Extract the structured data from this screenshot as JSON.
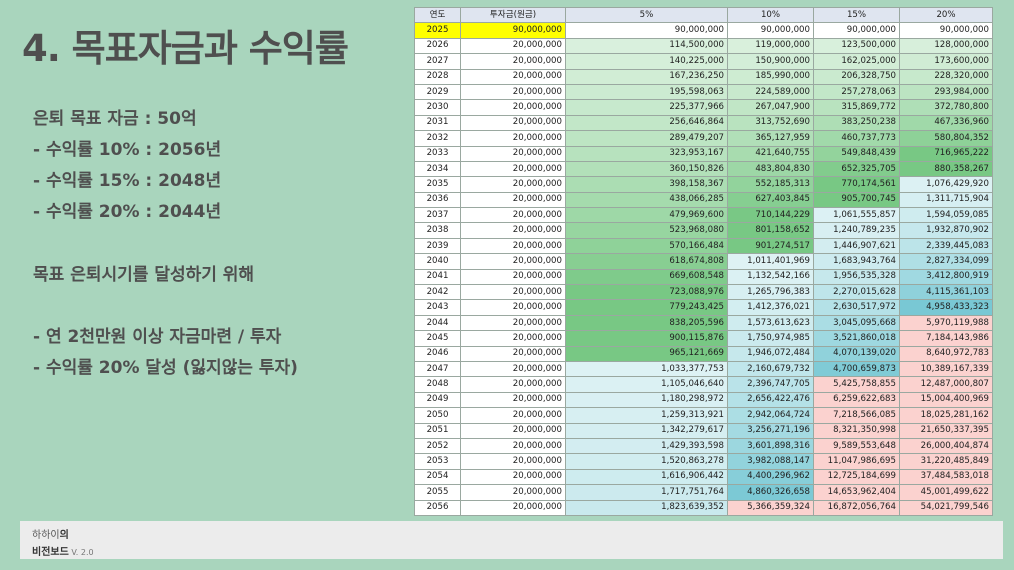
{
  "slide": {
    "title": "4. 목표자금과 수익률",
    "notes": [
      "은퇴 목표 자금 : 50억",
      " - 수익률 10% : 2056년",
      " - 수익률 15% : 2048년",
      " - 수익률 20% : 2044년",
      "목표 은퇴시기를 달성하기 위해",
      " - 연 2천만원 이상 자금마련 / 투자",
      " - 수익률 20% 달성 (잃지않는 투자)"
    ]
  },
  "table": {
    "headers": [
      "연도",
      "투자금(원금)",
      "5%",
      "10%",
      "15%",
      "20%"
    ],
    "rows": [
      [
        "2025",
        "90,000,000",
        "90,000,000",
        "90,000,000",
        "90,000,000",
        "90,000,000"
      ],
      [
        "2026",
        "20,000,000",
        "114,500,000",
        "119,000,000",
        "123,500,000",
        "128,000,000"
      ],
      [
        "2027",
        "20,000,000",
        "140,225,000",
        "150,900,000",
        "162,025,000",
        "173,600,000"
      ],
      [
        "2028",
        "20,000,000",
        "167,236,250",
        "185,990,000",
        "206,328,750",
        "228,320,000"
      ],
      [
        "2029",
        "20,000,000",
        "195,598,063",
        "224,589,000",
        "257,278,063",
        "293,984,000"
      ],
      [
        "2030",
        "20,000,000",
        "225,377,966",
        "267,047,900",
        "315,869,772",
        "372,780,800"
      ],
      [
        "2031",
        "20,000,000",
        "256,646,864",
        "313,752,690",
        "383,250,238",
        "467,336,960"
      ],
      [
        "2032",
        "20,000,000",
        "289,479,207",
        "365,127,959",
        "460,737,773",
        "580,804,352"
      ],
      [
        "2033",
        "20,000,000",
        "323,953,167",
        "421,640,755",
        "549,848,439",
        "716,965,222"
      ],
      [
        "2034",
        "20,000,000",
        "360,150,826",
        "483,804,830",
        "652,325,705",
        "880,358,267"
      ],
      [
        "2035",
        "20,000,000",
        "398,158,367",
        "552,185,313",
        "770,174,561",
        "1,076,429,920"
      ],
      [
        "2036",
        "20,000,000",
        "438,066,285",
        "627,403,845",
        "905,700,745",
        "1,311,715,904"
      ],
      [
        "2037",
        "20,000,000",
        "479,969,600",
        "710,144,229",
        "1,061,555,857",
        "1,594,059,085"
      ],
      [
        "2038",
        "20,000,000",
        "523,968,080",
        "801,158,652",
        "1,240,789,235",
        "1,932,870,902"
      ],
      [
        "2039",
        "20,000,000",
        "570,166,484",
        "901,274,517",
        "1,446,907,621",
        "2,339,445,083"
      ],
      [
        "2040",
        "20,000,000",
        "618,674,808",
        "1,011,401,969",
        "1,683,943,764",
        "2,827,334,099"
      ],
      [
        "2041",
        "20,000,000",
        "669,608,548",
        "1,132,542,166",
        "1,956,535,328",
        "3,412,800,919"
      ],
      [
        "2042",
        "20,000,000",
        "723,088,976",
        "1,265,796,383",
        "2,270,015,628",
        "4,115,361,103"
      ],
      [
        "2043",
        "20,000,000",
        "779,243,425",
        "1,412,376,021",
        "2,630,517,972",
        "4,958,433,323"
      ],
      [
        "2044",
        "20,000,000",
        "838,205,596",
        "1,573,613,623",
        "3,045,095,668",
        "5,970,119,988"
      ],
      [
        "2045",
        "20,000,000",
        "900,115,876",
        "1,750,974,985",
        "3,521,860,018",
        "7,184,143,986"
      ],
      [
        "2046",
        "20,000,000",
        "965,121,669",
        "1,946,072,484",
        "4,070,139,020",
        "8,640,972,783"
      ],
      [
        "2047",
        "20,000,000",
        "1,033,377,753",
        "2,160,679,732",
        "4,700,659,873",
        "10,389,167,339"
      ],
      [
        "2048",
        "20,000,000",
        "1,105,046,640",
        "2,396,747,705",
        "5,425,758,855",
        "12,487,000,807"
      ],
      [
        "2049",
        "20,000,000",
        "1,180,298,972",
        "2,656,422,476",
        "6,259,622,683",
        "15,004,400,969"
      ],
      [
        "2050",
        "20,000,000",
        "1,259,313,921",
        "2,942,064,724",
        "7,218,566,085",
        "18,025,281,162"
      ],
      [
        "2051",
        "20,000,000",
        "1,342,279,617",
        "3,256,271,196",
        "8,321,350,998",
        "21,650,337,395"
      ],
      [
        "2052",
        "20,000,000",
        "1,429,393,598",
        "3,601,898,316",
        "9,589,553,648",
        "26,000,404,874"
      ],
      [
        "2053",
        "20,000,000",
        "1,520,863,278",
        "3,982,088,147",
        "11,047,986,695",
        "31,220,485,849"
      ],
      [
        "2054",
        "20,000,000",
        "1,616,906,442",
        "4,400,296,962",
        "12,725,184,699",
        "37,484,583,018"
      ],
      [
        "2055",
        "20,000,000",
        "1,717,751,764",
        "4,860,326,658",
        "14,653,962,404",
        "45,001,499,622"
      ],
      [
        "2056",
        "20,000,000",
        "1,823,639,352",
        "5,366,359,324",
        "16,872,056,764",
        "54,021,799,546"
      ]
    ]
  },
  "footer": {
    "line1_a": "하하이",
    "line1_b": "의",
    "line2_a": "비전보드",
    "version": " V. 2.0"
  },
  "colors": {
    "background": "#a9d5bd",
    "highlight": "#ffff00",
    "target_reached": "#fbd2cf"
  }
}
